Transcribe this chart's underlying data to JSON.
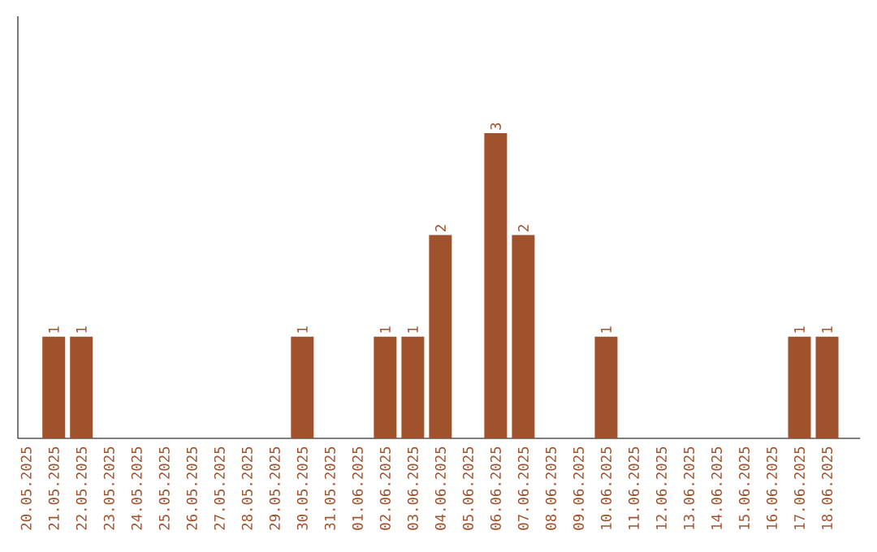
{
  "chart_data": {
    "type": "bar",
    "categories": [
      "20.05.2025",
      "21.05.2025",
      "22.05.2025",
      "23.05.2025",
      "24.05.2025",
      "25.05.2025",
      "26.05.2025",
      "27.05.2025",
      "28.05.2025",
      "29.05.2025",
      "30.05.2025",
      "31.05.2025",
      "01.06.2025",
      "02.06.2025",
      "03.06.2025",
      "04.06.2025",
      "05.06.2025",
      "06.06.2025",
      "07.06.2025",
      "08.06.2025",
      "09.06.2025",
      "10.06.2025",
      "11.06.2025",
      "12.06.2025",
      "13.06.2025",
      "14.06.2025",
      "15.06.2025",
      "16.06.2025",
      "17.06.2025",
      "18.06.2025"
    ],
    "values": [
      0,
      1,
      1,
      0,
      0,
      0,
      0,
      0,
      0,
      0,
      1,
      0,
      0,
      1,
      1,
      2,
      0,
      3,
      2,
      0,
      0,
      1,
      0,
      0,
      0,
      0,
      0,
      0,
      1,
      1
    ],
    "value_labels": [
      null,
      "1",
      "1",
      null,
      null,
      null,
      null,
      null,
      null,
      null,
      "1",
      null,
      null,
      "1",
      "1",
      "2",
      null,
      "3",
      "2",
      null,
      null,
      "1",
      null,
      null,
      null,
      null,
      null,
      null,
      "1",
      "1"
    ],
    "color": "#a0522d",
    "ylim": [
      0,
      4.15
    ],
    "tick_labels": "x"
  }
}
